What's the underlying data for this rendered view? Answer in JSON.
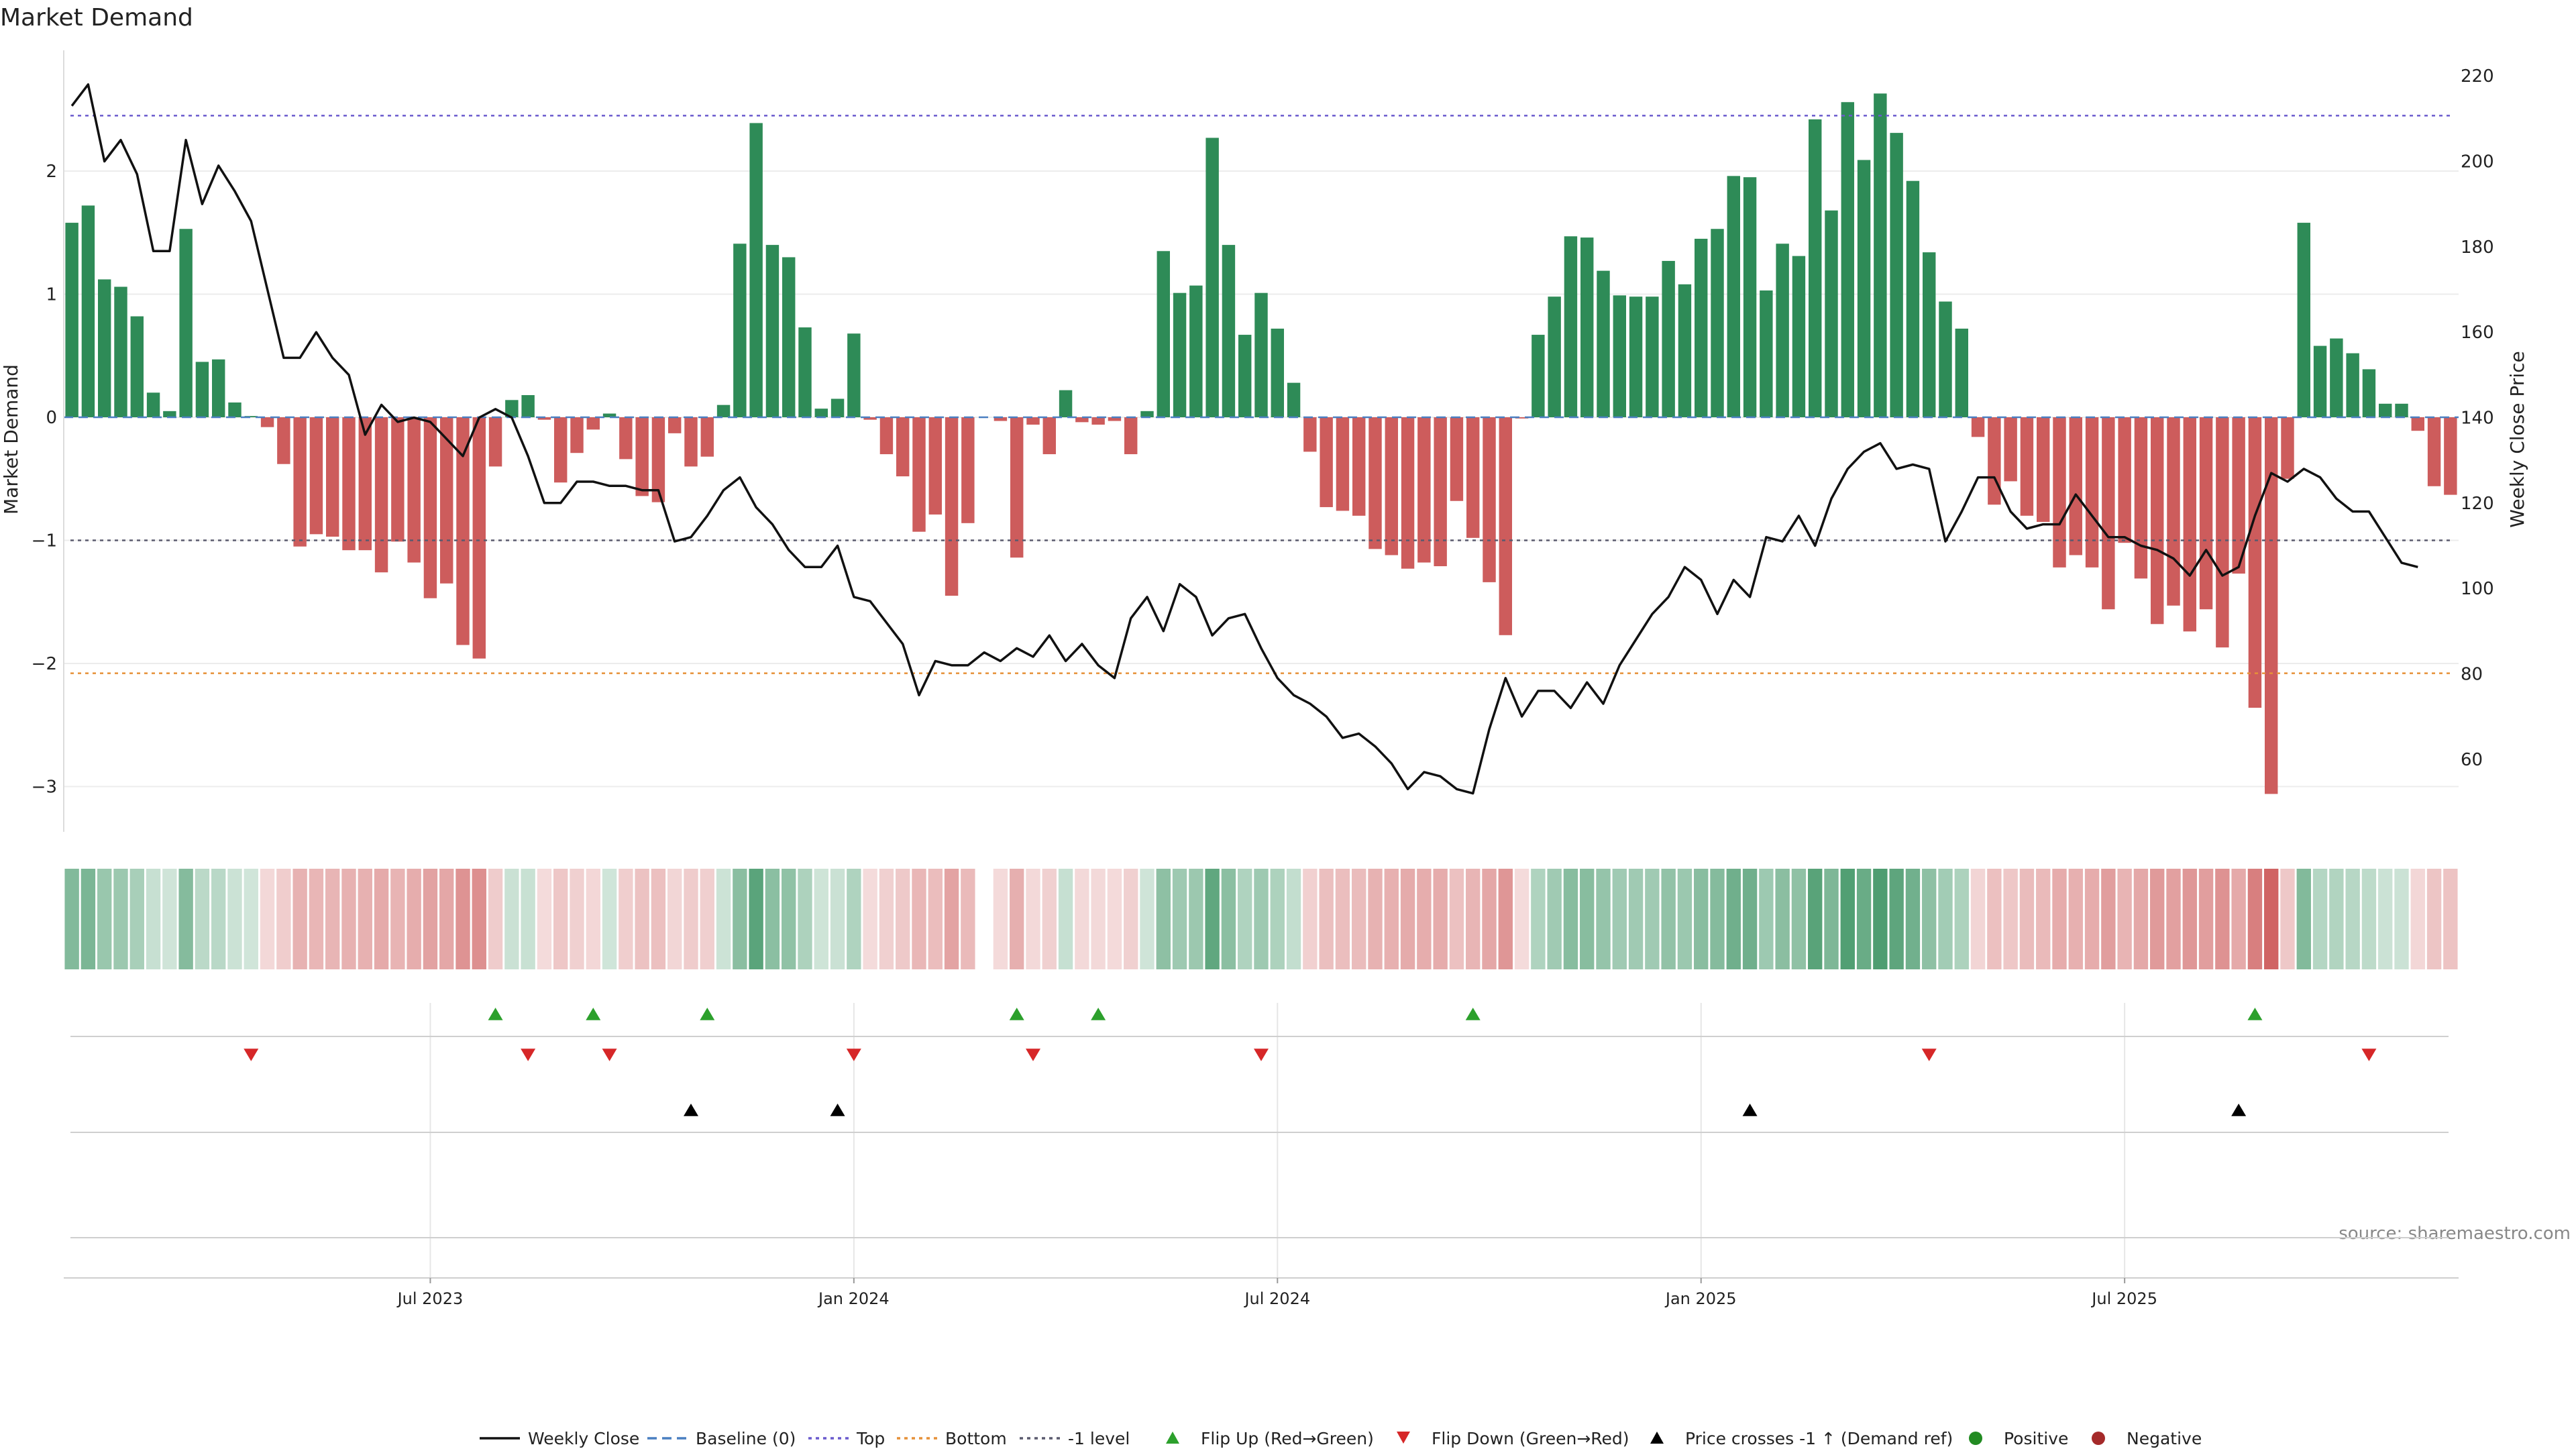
{
  "title": "Market Demand",
  "source": "source: sharemaestro.com",
  "chart_data": {
    "type": "bar",
    "ylabel_left": "Market Demand",
    "ylabel_right": "Weekly Close Price",
    "ylim_left": [
      -3.3,
      2.95
    ],
    "ylim_right": [
      43,
      226
    ],
    "left_ticks": [
      2,
      1,
      0,
      -1,
      -2,
      -3
    ],
    "left_tick_labels": [
      "2",
      "1",
      "0",
      "−1",
      "−2",
      "−3"
    ],
    "right_ticks": [
      220,
      200,
      180,
      160,
      140,
      120,
      100,
      80,
      60
    ],
    "x_tick_labels": [
      {
        "label": "Jul 2023",
        "week": 22
      },
      {
        "label": "Jan 2024",
        "week": 48
      },
      {
        "label": "Jul 2024",
        "week": 74
      },
      {
        "label": "Jan 2025",
        "week": 100
      },
      {
        "label": "Jul 2025",
        "week": 126
      }
    ],
    "reference_lines": {
      "top": 2.45,
      "bottom": -2.08,
      "minus_one": -1,
      "baseline": 0
    },
    "demand": [
      1.58,
      1.72,
      1.12,
      1.06,
      0.82,
      0.2,
      0.05,
      1.53,
      0.45,
      0.47,
      0.12,
      0.01,
      -0.08,
      -0.38,
      -1.05,
      -0.95,
      -0.97,
      -1.08,
      -1.08,
      -1.26,
      -1.01,
      -1.18,
      -1.47,
      -1.35,
      -1.85,
      -1.96,
      -0.4,
      0.14,
      0.18,
      -0.02,
      -0.53,
      -0.29,
      -0.1,
      0.03,
      -0.34,
      -0.64,
      -0.69,
      -0.13,
      -0.4,
      -0.32,
      0.1,
      1.41,
      2.39,
      1.4,
      1.3,
      0.73,
      0.07,
      0.15,
      0.68,
      -0.02,
      -0.3,
      -0.48,
      -0.93,
      -0.79,
      -1.45,
      -0.86,
      null,
      -0.03,
      -1.14,
      -0.06,
      -0.3,
      0.22,
      -0.04,
      -0.06,
      -0.03,
      -0.3,
      0.05,
      1.35,
      1.01,
      1.07,
      2.27,
      1.4,
      0.67,
      1.01,
      0.72,
      0.28,
      -0.28,
      -0.73,
      -0.76,
      -0.8,
      -1.07,
      -1.12,
      -1.23,
      -1.18,
      -1.21,
      -0.68,
      -0.98,
      -1.34,
      -1.77,
      -0.01,
      0.67,
      0.98,
      1.47,
      1.46,
      1.19,
      0.99,
      0.98,
      0.98,
      1.27,
      1.08,
      1.45,
      1.53,
      1.96,
      1.95,
      1.03,
      1.41,
      1.31,
      2.42,
      1.68,
      2.56,
      2.09,
      2.63,
      2.31,
      1.92,
      1.34,
      0.94,
      0.72,
      -0.16,
      -0.71,
      -0.52,
      -0.8,
      -0.85,
      -1.22,
      -1.12,
      -1.22,
      -1.56,
      -1.02,
      -1.31,
      -1.68,
      -1.53,
      -1.74,
      -1.56,
      -1.87,
      -1.27,
      -2.36,
      -3.06,
      -0.5,
      1.58,
      0.58,
      0.64,
      0.52,
      0.39,
      0.11,
      0.11,
      -0.11,
      -0.56,
      -0.63
    ],
    "weekly_close": [
      213,
      218,
      200,
      205,
      197,
      179,
      179,
      205,
      190,
      199,
      193,
      186,
      170,
      154,
      154,
      160,
      154,
      150,
      136,
      143,
      139,
      140,
      139,
      135,
      131,
      140,
      142,
      140,
      131,
      120,
      120,
      125,
      125,
      124,
      124,
      123,
      123,
      111,
      112,
      117,
      123,
      126,
      119,
      115,
      109,
      105,
      105,
      110,
      98,
      97,
      92,
      87,
      75,
      83,
      82,
      82,
      85,
      83,
      86,
      84,
      89,
      83,
      87,
      82,
      79,
      93,
      98,
      90,
      101,
      98,
      89,
      93,
      94,
      86,
      79,
      75,
      73,
      70,
      65,
      66,
      63,
      59,
      53,
      57,
      56,
      53,
      52,
      67,
      79,
      70,
      76,
      76,
      72,
      78,
      73,
      82,
      88,
      94,
      98,
      105,
      102,
      94,
      102,
      98,
      112,
      111,
      117,
      110,
      121,
      128,
      132,
      134,
      128,
      129,
      128,
      111,
      118,
      126,
      126,
      118,
      114,
      115,
      115,
      122,
      117,
      112,
      112,
      110,
      109,
      107,
      103,
      109,
      103,
      105,
      117,
      127,
      125,
      128,
      126,
      121,
      118,
      118,
      112,
      106,
      105
    ],
    "flip_up_weeks": [
      26,
      32,
      39,
      58,
      63,
      86,
      134
    ],
    "flip_down_weeks": [
      11,
      28,
      33,
      48,
      59,
      73,
      114,
      141
    ],
    "price_cross_weeks": [
      38,
      47,
      103,
      133
    ],
    "legend": [
      "Weekly Close",
      "Baseline (0)",
      "Top",
      "Bottom",
      "-1 level",
      "Flip Up (Red→Green)",
      "Flip Down (Green→Red)",
      "Price crosses -1 ↑ (Demand ref)",
      "Positive",
      "Negative"
    ]
  },
  "colors": {
    "positive": "#2e8b57",
    "negative": "#cd5c5c",
    "price": "#111111",
    "top": "#6a5acd",
    "bottom": "#e69138",
    "minus_one": "#5a5a6e",
    "baseline": "#4a7fc1",
    "flip_up": "#2ca02c",
    "flip_down": "#d62728",
    "cross": "#000000",
    "positive_dot": "#228b22",
    "negative_dot": "#a52a2a"
  }
}
